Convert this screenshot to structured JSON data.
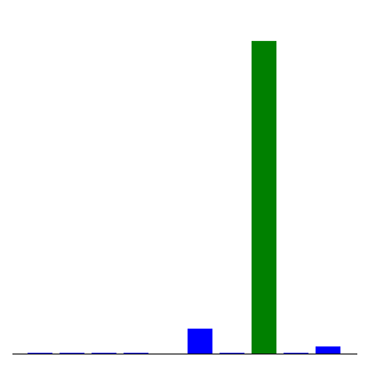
{
  "chart_data": {
    "type": "bar",
    "categories": [
      "",
      "",
      "",
      "",
      "",
      "",
      "",
      "",
      "",
      ""
    ],
    "values": [
      0.8,
      0.8,
      0.8,
      0.8,
      0,
      28,
      0.8,
      351,
      0.8,
      8
    ],
    "bar_colors": [
      "#0000ff",
      "#0000ff",
      "#0000ff",
      "#0000ff",
      "#0000ff",
      "#0000ff",
      "#0000ff",
      "#008000",
      "#0000ff",
      "#0000ff"
    ],
    "ylim": [
      0,
      370
    ],
    "grid": false,
    "axis_color": "#000000",
    "title": "",
    "xlabel": "",
    "ylabel": ""
  }
}
